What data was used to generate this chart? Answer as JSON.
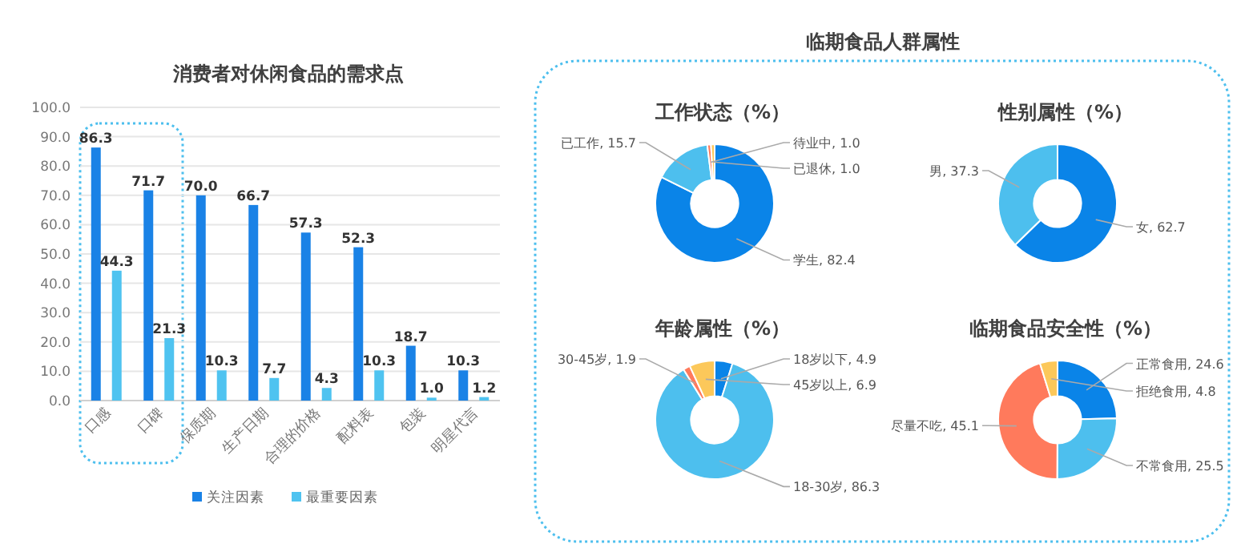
{
  "chart_data": [
    {
      "type": "bar",
      "title": "消费者对休闲食品的需求点",
      "categories": [
        "口感",
        "口碑",
        "保质期",
        "生产日期",
        "合理的价格",
        "配料表",
        "包装",
        "明星代言"
      ],
      "series": [
        {
          "name": "关注因素",
          "color": "#1a82e6",
          "values": [
            86.3,
            71.7,
            70.0,
            66.7,
            57.3,
            52.3,
            18.7,
            10.3
          ],
          "value_labels": [
            "86.3",
            "71.7",
            "70.0",
            "66.7",
            "57.3",
            "52.3",
            "18.7",
            "10.3"
          ]
        },
        {
          "name": "最重要因素",
          "color": "#4fc3f0",
          "values": [
            44.3,
            21.3,
            10.3,
            7.7,
            4.3,
            10.3,
            1.0,
            1.2
          ],
          "value_labels": [
            "44.3",
            "21.3",
            "10.3",
            "7.7",
            "4.3",
            "10.3",
            "1.0",
            "1.2"
          ]
        }
      ],
      "ylim": [
        0,
        100
      ],
      "yticks": [
        {
          "value": 0,
          "label": "0.0"
        },
        {
          "value": 10,
          "label": "10.0"
        },
        {
          "value": 20,
          "label": "20.0"
        },
        {
          "value": 30,
          "label": "30.0"
        },
        {
          "value": 40,
          "label": "40.0"
        },
        {
          "value": 50,
          "label": "50.0"
        },
        {
          "value": 60,
          "label": "60.0"
        },
        {
          "value": 70,
          "label": "70.0"
        },
        {
          "value": 80,
          "label": "80.0"
        },
        {
          "value": 90,
          "label": "90.0"
        },
        {
          "value": 100,
          "label": "100.0"
        }
      ],
      "grid": "y",
      "legend": "bottom"
    },
    {
      "type": "other",
      "title": "临期食品人群属性"
    },
    {
      "type": "donut",
      "title": "工作状态（%）",
      "categories": [
        "学生",
        "已工作",
        "待业中",
        "已退休"
      ],
      "values": [
        82.4,
        15.7,
        1.0,
        1.0
      ],
      "colors": [
        "#0a84e8",
        "#4dbfee",
        "#ff7a5c",
        "#fcc85a"
      ],
      "value_labels": [
        "82.4",
        "15.7",
        "1.0",
        "1.0"
      ]
    },
    {
      "type": "donut",
      "title": "性别属性（%）",
      "categories": [
        "女",
        "男"
      ],
      "values": [
        62.7,
        37.3
      ],
      "colors": [
        "#0a84e8",
        "#4dbfee"
      ],
      "value_labels": [
        "62.7",
        "37.3"
      ]
    },
    {
      "type": "donut",
      "title": "年龄属性（%）",
      "categories": [
        "18岁以下",
        "18-30岁",
        "30-45岁",
        "45岁以上"
      ],
      "values": [
        4.9,
        86.3,
        1.9,
        6.9
      ],
      "colors": [
        "#0a84e8",
        "#4dbfee",
        "#ff7a5c",
        "#fcc85a"
      ],
      "value_labels": [
        "4.9",
        "86.3",
        "1.9",
        "6.9"
      ]
    },
    {
      "type": "donut",
      "title": "临期食品安全性（%）",
      "categories": [
        "正常食用",
        "不常食用",
        "尽量不吃",
        "拒绝食用"
      ],
      "values": [
        24.6,
        25.5,
        45.1,
        4.8
      ],
      "colors": [
        "#0a84e8",
        "#4dbfee",
        "#ff7a5c",
        "#fcc85a"
      ],
      "value_labels": [
        "24.6",
        "25.5",
        "45.1",
        "4.8"
      ]
    }
  ]
}
